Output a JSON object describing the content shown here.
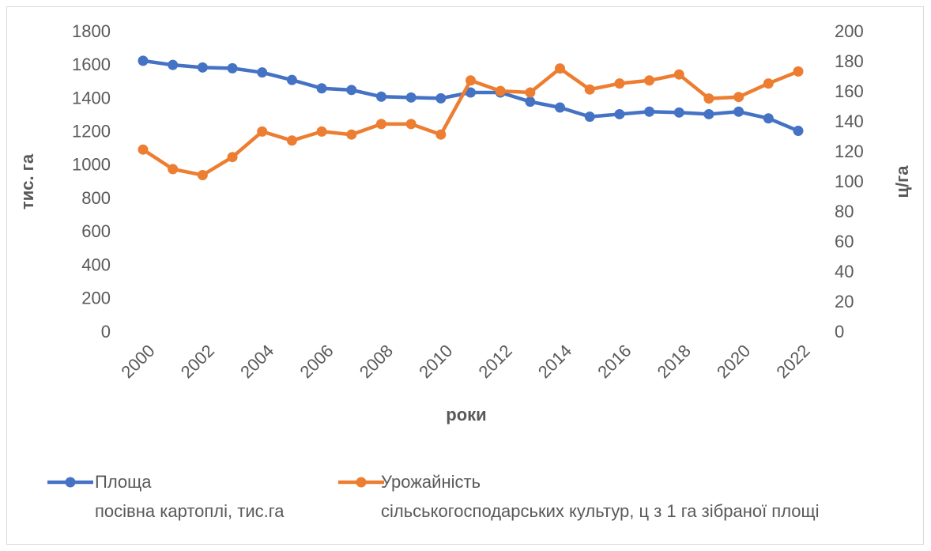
{
  "chart_data": {
    "type": "line",
    "x": [
      2000,
      2001,
      2002,
      2003,
      2004,
      2005,
      2006,
      2007,
      2008,
      2009,
      2010,
      2011,
      2012,
      2013,
      2014,
      2015,
      2016,
      2017,
      2018,
      2019,
      2020,
      2021,
      2022
    ],
    "xlim": [
      2000,
      2022
    ],
    "xticks": [
      2000,
      2002,
      2004,
      2006,
      2008,
      2010,
      2012,
      2014,
      2016,
      2018,
      2020,
      2022
    ],
    "xlabel": "роки",
    "ylabel": "тис. га",
    "y2label": "ц/га",
    "ylim": [
      0,
      1800
    ],
    "yticks": [
      0,
      200,
      400,
      600,
      800,
      1000,
      1200,
      1400,
      1600,
      1800
    ],
    "y2lim": [
      0,
      200
    ],
    "y2ticks": [
      0,
      20,
      40,
      60,
      80,
      100,
      120,
      140,
      160,
      180,
      200
    ],
    "grid": false,
    "legend": "bottom",
    "series": [
      {
        "name": "Площа\nпосівна картоплі, тис.га",
        "color": "#4472c4",
        "values": [
          1630,
          1605,
          1590,
          1585,
          1560,
          1515,
          1465,
          1455,
          1415,
          1410,
          1405,
          1440,
          1440,
          1385,
          1350,
          1295,
          1310,
          1325,
          1320,
          1310,
          1325,
          1285,
          1210
        ]
      },
      {
        "name": "Урожайність\nсільськогосподарських культур, ц з 1 га зібраної площі",
        "color": "#ed7d31",
        "axis": "y2",
        "values": [
          122,
          109,
          105,
          117,
          134,
          128,
          134,
          132,
          139,
          139,
          132,
          168,
          161,
          160,
          176,
          162,
          166,
          168,
          172,
          156,
          157,
          166,
          174
        ]
      }
    ]
  }
}
